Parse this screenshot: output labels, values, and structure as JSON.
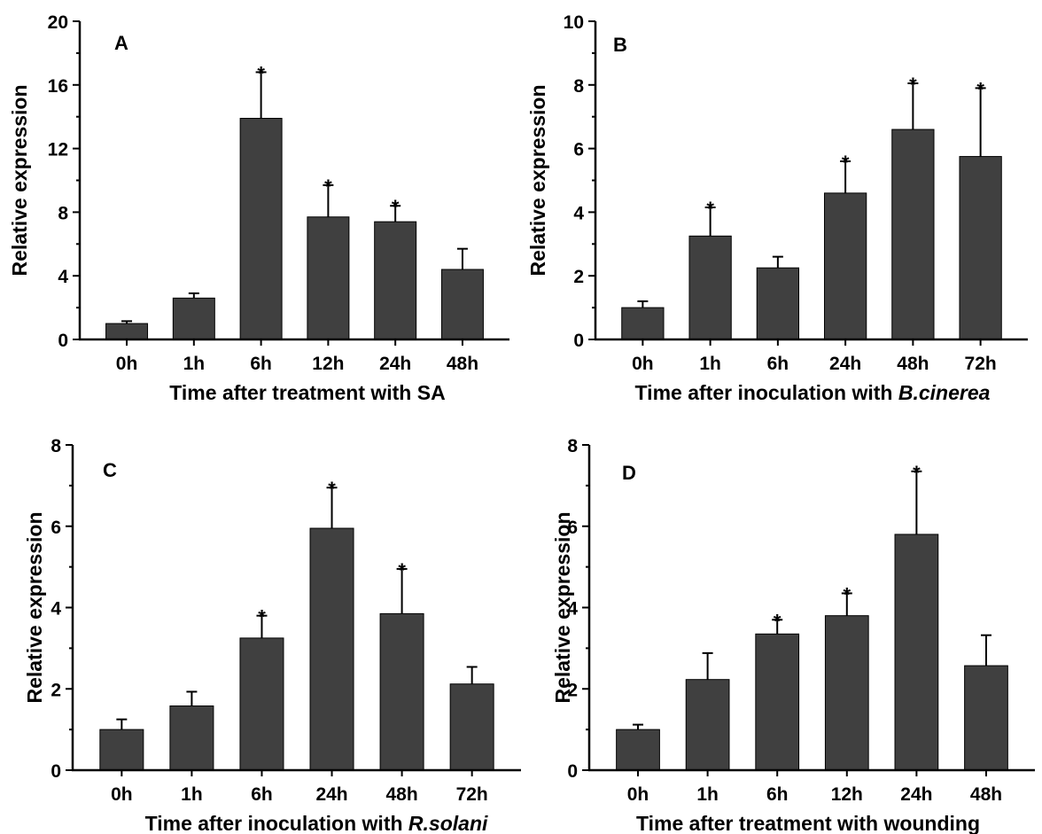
{
  "chart_data": [
    {
      "type": "bar",
      "panel_label": "A",
      "categories": [
        "0h",
        "1h",
        "6h",
        "12h",
        "24h",
        "48h"
      ],
      "values": [
        1.0,
        2.6,
        13.9,
        7.7,
        7.4,
        4.4
      ],
      "errors": [
        0.15,
        0.3,
        2.9,
        2.0,
        1.0,
        1.3
      ],
      "significant": [
        false,
        false,
        true,
        true,
        true,
        false
      ],
      "significance_marker": "*",
      "xlabel": "Time after treatment with SA",
      "xlabel_italic": "",
      "xlabel_suffix": "",
      "ylabel": "Relative expression",
      "ylim": [
        0,
        20
      ],
      "yticks": [
        "0",
        "4",
        "8",
        "12",
        "16",
        "20"
      ],
      "bar_color": "#404040",
      "grid": false
    },
    {
      "type": "bar",
      "panel_label": "B",
      "categories": [
        "0h",
        "1h",
        "6h",
        "24h",
        "48h",
        "72h"
      ],
      "values": [
        1.0,
        3.25,
        2.25,
        4.6,
        6.6,
        5.75
      ],
      "errors": [
        0.2,
        0.9,
        0.35,
        1.0,
        1.45,
        2.15
      ],
      "significant": [
        false,
        true,
        false,
        true,
        true,
        true
      ],
      "significance_marker": "*",
      "xlabel": "Time after inoculation with ",
      "xlabel_italic": "B.cinerea",
      "xlabel_suffix": "",
      "ylabel": "Relative expression",
      "ylim": [
        0,
        10
      ],
      "yticks": [
        "0",
        "2",
        "4",
        "6",
        "8",
        "10"
      ],
      "bar_color": "#404040",
      "grid": false
    },
    {
      "type": "bar",
      "panel_label": "C",
      "categories": [
        "0h",
        "1h",
        "6h",
        "24h",
        "48h",
        "72h"
      ],
      "values": [
        1.0,
        1.58,
        3.25,
        5.95,
        3.85,
        2.12
      ],
      "errors": [
        0.25,
        0.35,
        0.55,
        1.0,
        1.1,
        0.42
      ],
      "significant": [
        false,
        false,
        true,
        true,
        true,
        false
      ],
      "significance_marker": "*",
      "xlabel": "Time after inoculation with ",
      "xlabel_italic": "R.solani",
      "xlabel_suffix": "",
      "ylabel": "Relative expression",
      "ylim": [
        0,
        8
      ],
      "yticks": [
        "0",
        "2",
        "4",
        "6",
        "8"
      ],
      "bar_color": "#404040",
      "grid": false
    },
    {
      "type": "bar",
      "panel_label": "D",
      "categories": [
        "0h",
        "1h",
        "6h",
        "12h",
        "24h",
        "48h"
      ],
      "values": [
        1.0,
        2.23,
        3.35,
        3.8,
        5.8,
        2.57
      ],
      "errors": [
        0.12,
        0.65,
        0.35,
        0.55,
        1.55,
        0.75
      ],
      "significant": [
        false,
        false,
        true,
        true,
        true,
        false
      ],
      "significance_marker": "*",
      "xlabel": "Time after treatment with wounding",
      "xlabel_italic": "",
      "xlabel_suffix": "",
      "ylabel": "Relative expression",
      "ylim": [
        0,
        8
      ],
      "yticks": [
        "0",
        "2",
        "4",
        "6",
        "8"
      ],
      "bar_color": "#404040",
      "grid": false
    }
  ]
}
